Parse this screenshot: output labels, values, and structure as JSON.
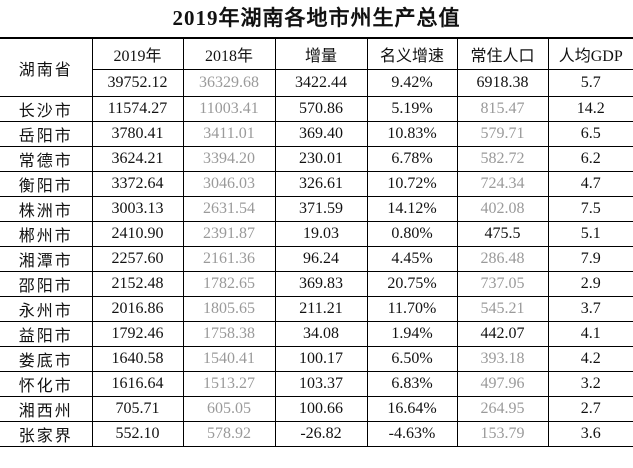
{
  "title": "2019年湖南各地市州生产总值",
  "table": {
    "header": [
      "2019年",
      "2018年",
      "增量",
      "名义增速",
      "常住人口",
      "人均GDP"
    ],
    "rows": [
      [
        "湖南省",
        "39752.12",
        "36329.68",
        "3422.44",
        "9.42%",
        "6918.38",
        "5.7"
      ],
      [
        "长沙市",
        "11574.27",
        "11003.41",
        "570.86",
        "5.19%",
        "815.47",
        "14.2"
      ],
      [
        "岳阳市",
        "3780.41",
        "3411.01",
        "369.40",
        "10.83%",
        "579.71",
        "6.5"
      ],
      [
        "常德市",
        "3624.21",
        "3394.20",
        "230.01",
        "6.78%",
        "582.72",
        "6.2"
      ],
      [
        "衡阳市",
        "3372.64",
        "3046.03",
        "326.61",
        "10.72%",
        "724.34",
        "4.7"
      ],
      [
        "株洲市",
        "3003.13",
        "2631.54",
        "371.59",
        "14.12%",
        "402.08",
        "7.5"
      ],
      [
        "郴州市",
        "2410.90",
        "2391.87",
        "19.03",
        "0.80%",
        "475.5",
        "5.1"
      ],
      [
        "湘潭市",
        "2257.60",
        "2161.36",
        "96.24",
        "4.45%",
        "286.48",
        "7.9"
      ],
      [
        "邵阳市",
        "2152.48",
        "1782.65",
        "369.83",
        "20.75%",
        "737.05",
        "2.9"
      ],
      [
        "永州市",
        "2016.86",
        "1805.65",
        "211.21",
        "11.70%",
        "545.21",
        "3.7"
      ],
      [
        "益阳市",
        "1792.46",
        "1758.38",
        "34.08",
        "1.94%",
        "442.07",
        "4.1"
      ],
      [
        "娄底市",
        "1640.58",
        "1540.41",
        "100.17",
        "6.50%",
        "393.18",
        "4.2"
      ],
      [
        "怀化市",
        "1616.64",
        "1513.27",
        "103.37",
        "6.83%",
        "497.96",
        "3.2"
      ],
      [
        "湘西州",
        "705.71",
        "605.05",
        "100.66",
        "16.64%",
        "264.95",
        "2.7"
      ],
      [
        "张家界",
        "552.10",
        "578.92",
        "-26.82",
        "-4.63%",
        "153.79",
        "3.6"
      ]
    ]
  }
}
